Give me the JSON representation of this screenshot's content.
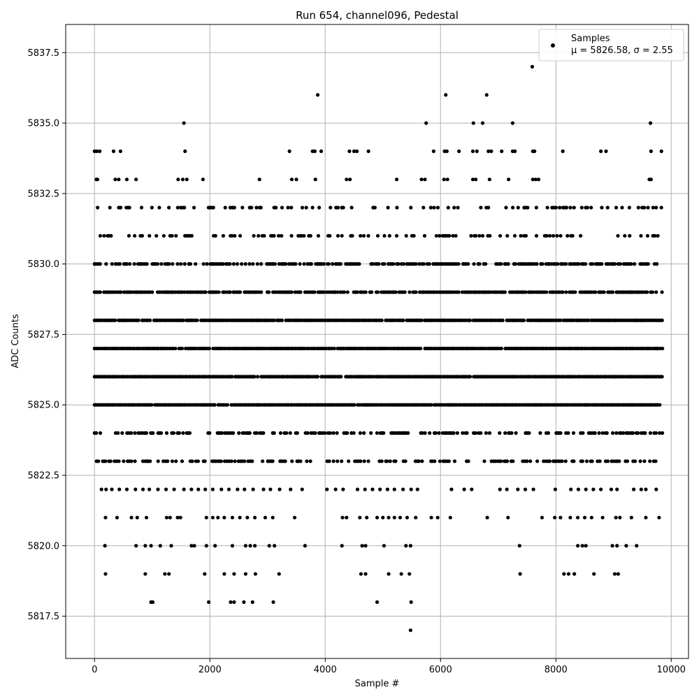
{
  "chart_data": {
    "type": "scatter",
    "title": "Run 654, channel096, Pedestal",
    "xlabel": "Sample #",
    "ylabel": "ADC Counts",
    "xlim": [
      -500,
      10300
    ],
    "ylim": [
      5816,
      5838.5
    ],
    "x_ticks": [
      0,
      2000,
      4000,
      6000,
      8000,
      10000
    ],
    "y_ticks": [
      5817.5,
      5820.0,
      5822.5,
      5825.0,
      5827.5,
      5830.0,
      5832.5,
      5835.0,
      5837.5
    ],
    "x_tick_labels": [
      "0",
      "2000",
      "4000",
      "6000",
      "8000",
      "10000"
    ],
    "y_tick_labels": [
      "5817.5",
      "5820.0",
      "5822.5",
      "5825.0",
      "5827.5",
      "5830.0",
      "5832.5",
      "5835.0",
      "5837.5"
    ],
    "grid": true,
    "legend": {
      "placement": "top-right",
      "series_label": "Samples",
      "stats_label": "μ = 5826.58, σ = 2.55"
    },
    "marker_color": "#000000",
    "sample_count": 9850,
    "value_levels": [
      5817,
      5818,
      5819,
      5820,
      5821,
      5822,
      5823,
      5824,
      5825,
      5826,
      5827,
      5828,
      5829,
      5830,
      5831,
      5832,
      5833,
      5834,
      5835,
      5836,
      5837
    ],
    "series": [
      {
        "name": "Samples",
        "points": [
          [
            5480,
            5817
          ],
          [
            980,
            5818
          ],
          [
            1010,
            5818
          ],
          [
            1980,
            5818
          ],
          [
            2360,
            5818
          ],
          [
            2420,
            5818
          ],
          [
            2590,
            5818
          ],
          [
            2740,
            5818
          ],
          [
            3100,
            5818
          ],
          [
            4900,
            5818
          ],
          [
            5490,
            5818
          ],
          [
            190,
            5819
          ],
          [
            880,
            5819
          ],
          [
            1220,
            5819
          ],
          [
            1290,
            5819
          ],
          [
            1910,
            5819
          ],
          [
            2250,
            5819
          ],
          [
            2420,
            5819
          ],
          [
            2620,
            5819
          ],
          [
            2790,
            5819
          ],
          [
            3200,
            5819
          ],
          [
            4620,
            5819
          ],
          [
            4700,
            5819
          ],
          [
            5100,
            5819
          ],
          [
            5320,
            5819
          ],
          [
            5460,
            5819
          ],
          [
            7380,
            5819
          ],
          [
            8140,
            5819
          ],
          [
            8220,
            5819
          ],
          [
            8320,
            5819
          ],
          [
            8660,
            5819
          ],
          [
            9020,
            5819
          ],
          [
            9080,
            5819
          ],
          [
            180,
            5820
          ],
          [
            720,
            5820
          ],
          [
            880,
            5820
          ],
          [
            980,
            5820
          ],
          [
            1140,
            5820
          ],
          [
            1330,
            5820
          ],
          [
            1680,
            5820
          ],
          [
            1730,
            5820
          ],
          [
            1940,
            5820
          ],
          [
            2090,
            5820
          ],
          [
            2390,
            5820
          ],
          [
            2620,
            5820
          ],
          [
            2700,
            5820
          ],
          [
            2780,
            5820
          ],
          [
            3030,
            5820
          ],
          [
            3120,
            5820
          ],
          [
            3650,
            5820
          ],
          [
            4290,
            5820
          ],
          [
            4640,
            5820
          ],
          [
            4700,
            5820
          ],
          [
            5020,
            5820
          ],
          [
            5400,
            5820
          ],
          [
            5480,
            5820
          ],
          [
            7370,
            5820
          ],
          [
            8380,
            5820
          ],
          [
            8460,
            5820
          ],
          [
            8520,
            5820
          ],
          [
            8980,
            5820
          ],
          [
            9060,
            5820
          ],
          [
            9220,
            5820
          ],
          [
            9400,
            5820
          ],
          [
            190,
            5821
          ],
          [
            390,
            5821
          ],
          [
            640,
            5821
          ],
          [
            740,
            5821
          ],
          [
            900,
            5821
          ],
          [
            1250,
            5821
          ],
          [
            1310,
            5821
          ],
          [
            1440,
            5821
          ],
          [
            1490,
            5821
          ],
          [
            1940,
            5821
          ],
          [
            2050,
            5821
          ],
          [
            2140,
            5821
          ],
          [
            2250,
            5821
          ],
          [
            2390,
            5821
          ],
          [
            2520,
            5821
          ],
          [
            2650,
            5821
          ],
          [
            2780,
            5821
          ],
          [
            2960,
            5821
          ],
          [
            3090,
            5821
          ],
          [
            3470,
            5821
          ],
          [
            4300,
            5821
          ],
          [
            4370,
            5821
          ],
          [
            4600,
            5821
          ],
          [
            4720,
            5821
          ],
          [
            4900,
            5821
          ],
          [
            5000,
            5821
          ],
          [
            5100,
            5821
          ],
          [
            5200,
            5821
          ],
          [
            5300,
            5821
          ],
          [
            5420,
            5821
          ],
          [
            5570,
            5821
          ],
          [
            5840,
            5821
          ],
          [
            5950,
            5821
          ],
          [
            6170,
            5821
          ],
          [
            6810,
            5821
          ],
          [
            7170,
            5821
          ],
          [
            7760,
            5821
          ],
          [
            7980,
            5821
          ],
          [
            8080,
            5821
          ],
          [
            8250,
            5821
          ],
          [
            8380,
            5821
          ],
          [
            8500,
            5821
          ],
          [
            8620,
            5821
          ],
          [
            8810,
            5821
          ],
          [
            9040,
            5821
          ],
          [
            9110,
            5821
          ],
          [
            9310,
            5821
          ],
          [
            9560,
            5821
          ],
          [
            9790,
            5821
          ],
          [
            120,
            5822
          ],
          [
            200,
            5822
          ],
          [
            300,
            5822
          ],
          [
            430,
            5822
          ],
          [
            560,
            5822
          ],
          [
            710,
            5822
          ],
          [
            840,
            5822
          ],
          [
            950,
            5822
          ],
          [
            1100,
            5822
          ],
          [
            1240,
            5822
          ],
          [
            1380,
            5822
          ],
          [
            1550,
            5822
          ],
          [
            1680,
            5822
          ],
          [
            1800,
            5822
          ],
          [
            1920,
            5822
          ],
          [
            2050,
            5822
          ],
          [
            2200,
            5822
          ],
          [
            2330,
            5822
          ],
          [
            2480,
            5822
          ],
          [
            2600,
            5822
          ],
          [
            2750,
            5822
          ],
          [
            2930,
            5822
          ],
          [
            3050,
            5822
          ],
          [
            3210,
            5822
          ],
          [
            3400,
            5822
          ],
          [
            3600,
            5822
          ],
          [
            4030,
            5822
          ],
          [
            4180,
            5822
          ],
          [
            4310,
            5822
          ],
          [
            4560,
            5822
          ],
          [
            4690,
            5822
          ],
          [
            4820,
            5822
          ],
          [
            4950,
            5822
          ],
          [
            5080,
            5822
          ],
          [
            5200,
            5822
          ],
          [
            5350,
            5822
          ],
          [
            5490,
            5822
          ],
          [
            5600,
            5822
          ],
          [
            6190,
            5822
          ],
          [
            6410,
            5822
          ],
          [
            6540,
            5822
          ],
          [
            7030,
            5822
          ],
          [
            7150,
            5822
          ],
          [
            7340,
            5822
          ],
          [
            7470,
            5822
          ],
          [
            7610,
            5822
          ],
          [
            7990,
            5822
          ],
          [
            8260,
            5822
          ],
          [
            8390,
            5822
          ],
          [
            8520,
            5822
          ],
          [
            8650,
            5822
          ],
          [
            8780,
            5822
          ],
          [
            8960,
            5822
          ],
          [
            9060,
            5822
          ],
          [
            9350,
            5822
          ],
          [
            9480,
            5822
          ],
          [
            9560,
            5822
          ],
          [
            9740,
            5822
          ]
        ]
      }
    ],
    "band_density": [
      {
        "y": 5823,
        "density": 0.45
      },
      {
        "y": 5824,
        "density": 0.55
      },
      {
        "y": 5825,
        "density": 0.98
      },
      {
        "y": 5826,
        "density": 0.98
      },
      {
        "y": 5827,
        "density": 0.98
      },
      {
        "y": 5828,
        "density": 0.95
      },
      {
        "y": 5829,
        "density": 0.85
      },
      {
        "y": 5830,
        "density": 0.7
      },
      {
        "y": 5831,
        "density": 0.3
      },
      {
        "y": 5832,
        "density": 0.3
      }
    ],
    "sparse_upper": [
      [
        30,
        5833
      ],
      [
        50,
        5833
      ],
      [
        360,
        5833
      ],
      [
        420,
        5833
      ],
      [
        560,
        5833
      ],
      [
        720,
        5833
      ],
      [
        1450,
        5833
      ],
      [
        1530,
        5833
      ],
      [
        1600,
        5833
      ],
      [
        1880,
        5833
      ],
      [
        2860,
        5833
      ],
      [
        3420,
        5833
      ],
      [
        3500,
        5833
      ],
      [
        3830,
        5833
      ],
      [
        4370,
        5833
      ],
      [
        4430,
        5833
      ],
      [
        5240,
        5833
      ],
      [
        5670,
        5833
      ],
      [
        5730,
        5833
      ],
      [
        6060,
        5833
      ],
      [
        6120,
        5833
      ],
      [
        6560,
        5833
      ],
      [
        6610,
        5833
      ],
      [
        6850,
        5833
      ],
      [
        7180,
        5833
      ],
      [
        7600,
        5833
      ],
      [
        7650,
        5833
      ],
      [
        7700,
        5833
      ],
      [
        9620,
        5833
      ],
      [
        9650,
        5833
      ],
      [
        0,
        5834
      ],
      [
        40,
        5834
      ],
      [
        90,
        5834
      ],
      [
        330,
        5834
      ],
      [
        450,
        5834
      ],
      [
        1570,
        5834
      ],
      [
        3380,
        5834
      ],
      [
        3780,
        5834
      ],
      [
        3820,
        5834
      ],
      [
        3930,
        5834
      ],
      [
        4420,
        5834
      ],
      [
        4500,
        5834
      ],
      [
        4550,
        5834
      ],
      [
        4750,
        5834
      ],
      [
        5880,
        5834
      ],
      [
        6070,
        5834
      ],
      [
        6110,
        5834
      ],
      [
        6320,
        5834
      ],
      [
        6560,
        5834
      ],
      [
        6630,
        5834
      ],
      [
        6830,
        5834
      ],
      [
        6880,
        5834
      ],
      [
        7060,
        5834
      ],
      [
        7250,
        5834
      ],
      [
        7290,
        5834
      ],
      [
        7600,
        5834
      ],
      [
        7630,
        5834
      ],
      [
        8120,
        5834
      ],
      [
        8780,
        5834
      ],
      [
        8870,
        5834
      ],
      [
        9650,
        5834
      ],
      [
        9830,
        5834
      ],
      [
        1550,
        5835
      ],
      [
        5750,
        5835
      ],
      [
        6570,
        5835
      ],
      [
        6730,
        5835
      ],
      [
        7250,
        5835
      ],
      [
        9640,
        5835
      ],
      [
        3870,
        5836
      ],
      [
        6090,
        5836
      ],
      [
        6800,
        5836
      ],
      [
        7590,
        5837
      ]
    ]
  }
}
